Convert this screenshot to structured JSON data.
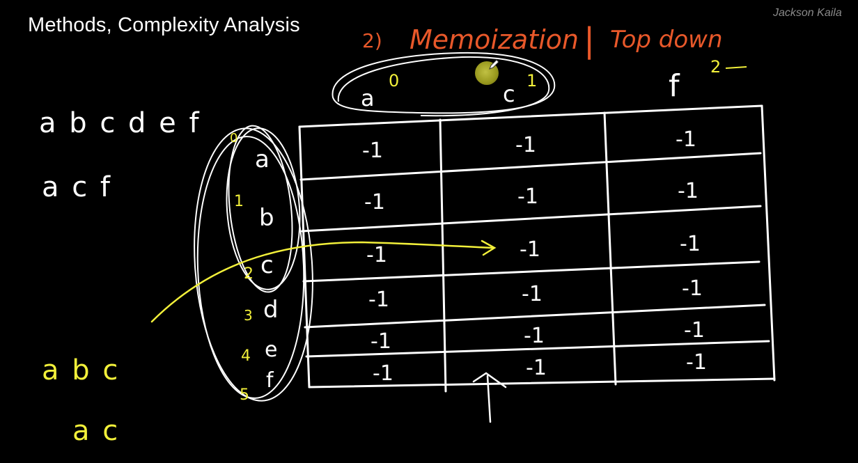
{
  "slide": {
    "title": "Methods, Complexity Analysis",
    "watermark": "Jackson Kaila"
  },
  "annotations": {
    "heading_number": "2)",
    "heading_main": "Memoization",
    "heading_divider": "|",
    "heading_sub": "Top down",
    "string_one": "a b c d e f",
    "string_two": "a c f",
    "example_one": "a b c",
    "example_two": "a c",
    "column_letters": [
      "a",
      "c",
      "f"
    ],
    "column_indices": [
      "0",
      "1",
      "2"
    ],
    "row_letters": [
      "a",
      "b",
      "c",
      "d",
      "e",
      "f"
    ],
    "row_indices": [
      "0",
      "1",
      "2",
      "3",
      "4",
      "5"
    ]
  },
  "table": {
    "rows": [
      [
        "-1",
        "-1",
        "-1"
      ],
      [
        "-1",
        "-1",
        "-1"
      ],
      [
        "-1",
        "-1",
        "-1"
      ],
      [
        "-1",
        "-1",
        "-1"
      ],
      [
        "-1",
        "-1",
        "-1"
      ],
      [
        "-1",
        "-1",
        "-1"
      ]
    ]
  },
  "colors": {
    "background": "#000000",
    "chalk": "#ffffff",
    "accent_yellow": "#f2f03a",
    "accent_orange": "#e8582a",
    "watermark": "#8a8a8a"
  },
  "icons": {
    "cursor": "pen-cursor-icon"
  }
}
